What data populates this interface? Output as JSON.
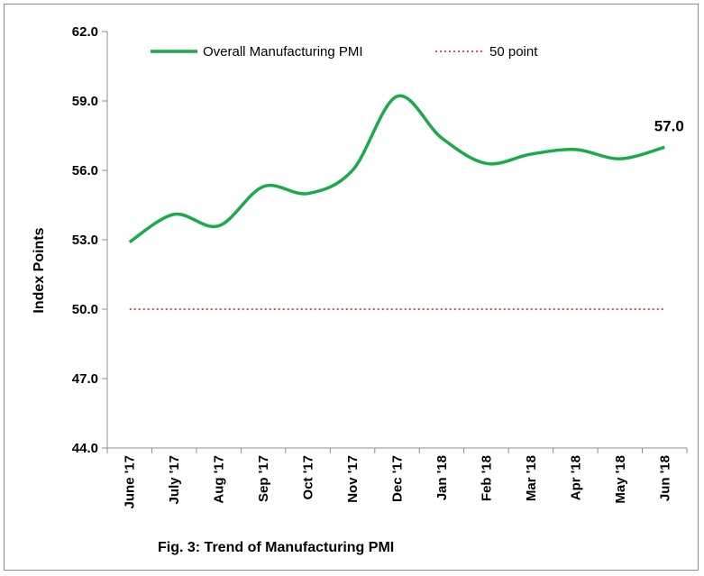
{
  "chart_data": {
    "type": "line",
    "title": "",
    "caption": "Fig. 3: Trend of  Manufacturing PMI",
    "xlabel": "",
    "ylabel": "Index Points",
    "categories": [
      "June '17",
      "July '17",
      "Aug '17",
      "Sep '17",
      "Oct '17",
      "Nov '17",
      "Dec '17",
      "Jan '18",
      "Feb '18",
      "Mar '18",
      "Apr '18",
      "May '18",
      "Jun '18"
    ],
    "series": [
      {
        "name": "Overall Manufacturing PMI",
        "color": "#1aab48",
        "style": "solid",
        "values": [
          52.9,
          54.1,
          53.6,
          55.3,
          55.0,
          56.0,
          59.2,
          57.4,
          56.3,
          56.7,
          56.9,
          56.5,
          57.0
        ]
      },
      {
        "name": "50 point",
        "color": "#d9534f",
        "style": "dotted",
        "values": [
          50,
          50,
          50,
          50,
          50,
          50,
          50,
          50,
          50,
          50,
          50,
          50,
          50
        ]
      }
    ],
    "ylim": [
      44.0,
      62.0
    ],
    "yticks": [
      "44.0",
      "47.0",
      "50.0",
      "53.0",
      "56.0",
      "59.0",
      "62.0"
    ],
    "data_labels": [
      {
        "series": 0,
        "index": 12,
        "text": "57.0"
      }
    ],
    "legend_position": "top",
    "grid": false
  }
}
